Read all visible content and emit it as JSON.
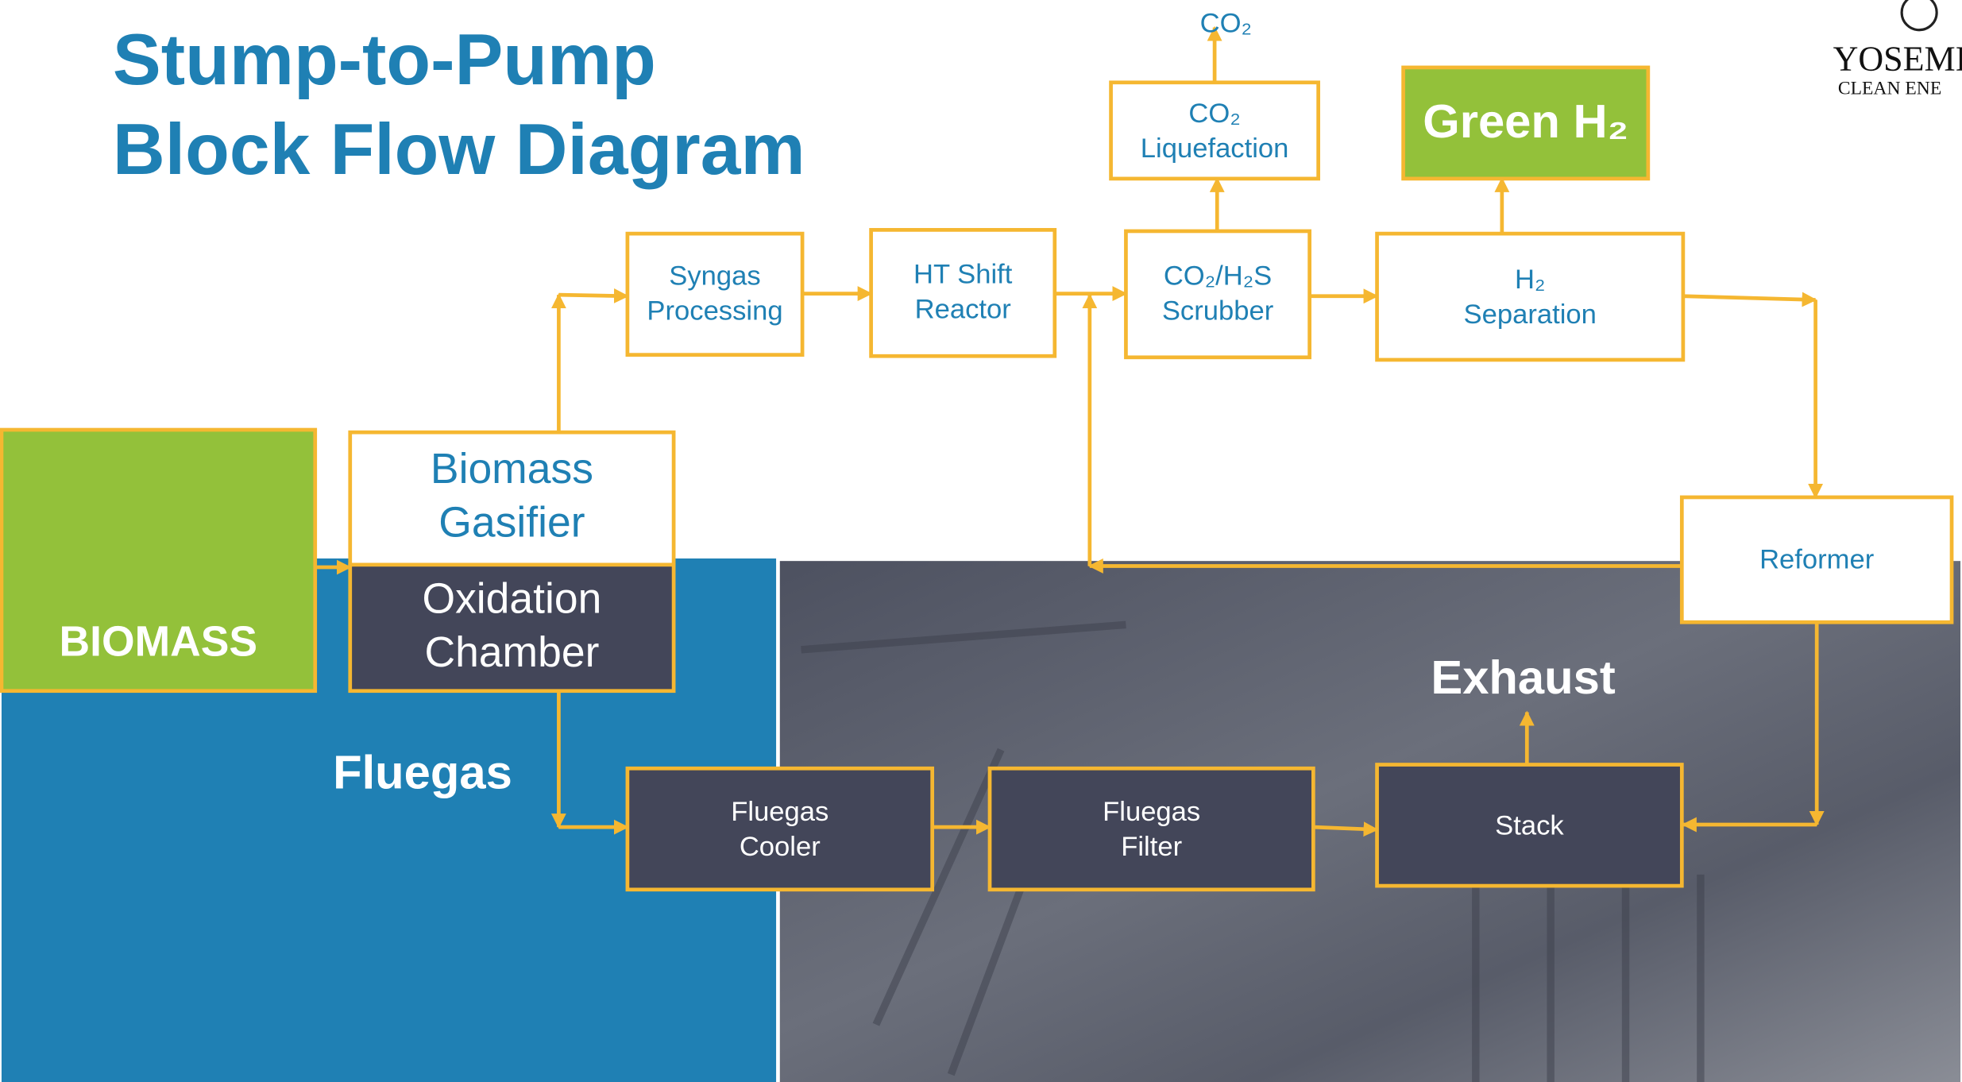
{
  "header": {
    "title": [
      "Stump-to-Pump",
      "Block Flow Diagram"
    ]
  },
  "logo": {
    "name": "YOSEMI",
    "tagline": "CLEAN ENE"
  },
  "nodes": [
    {
      "label": [
        "BIOMASS"
      ]
    },
    {
      "label": [
        "Biomass",
        "Gasifier"
      ]
    },
    {
      "label": [
        "Oxidation",
        "Chamber"
      ]
    },
    {
      "label": [
        "Syngas",
        "Processing"
      ]
    },
    {
      "label": [
        "HT Shift",
        "Reactor"
      ]
    },
    {
      "label": [
        "CO₂/H₂S",
        "Scrubber"
      ]
    },
    {
      "label": [
        "CO₂",
        "Liquefaction"
      ]
    },
    {
      "label": [
        "CO₂"
      ]
    },
    {
      "label": [
        "Green H₂"
      ]
    },
    {
      "label": [
        "H₂",
        "Separation"
      ]
    },
    {
      "label": [
        "Reformer"
      ]
    },
    {
      "label": [
        "Fluegas",
        "Cooler"
      ]
    },
    {
      "label": [
        "Fluegas",
        "Filter"
      ]
    },
    {
      "label": [
        "Stack"
      ]
    }
  ],
  "annotations": [
    "Fluegas",
    "Exhaust"
  ]
}
